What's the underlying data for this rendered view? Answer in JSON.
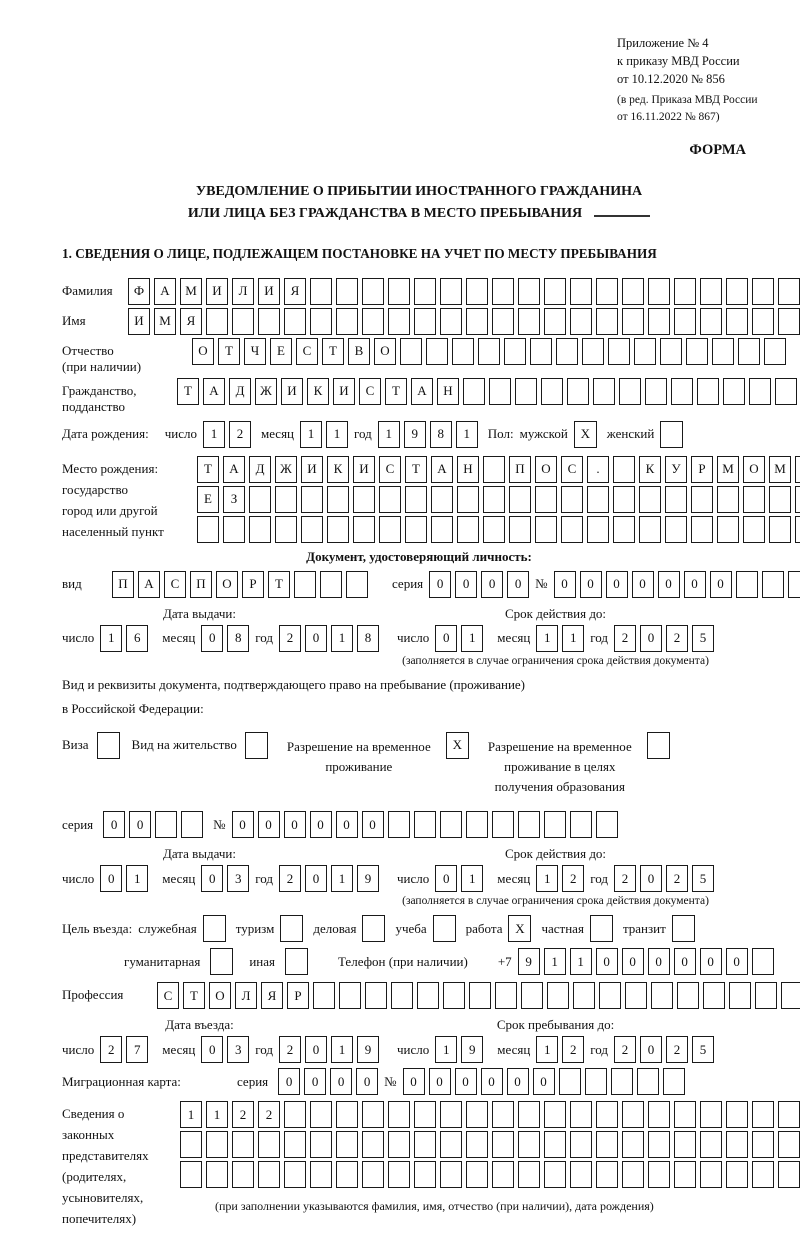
{
  "header": {
    "annex_lines": [
      "Приложение № 4",
      "к приказу МВД России",
      "от 10.12.2020 № 856"
    ],
    "edit_lines": [
      "(в ред. Приказа МВД России",
      "от 16.11.2022 № 867)"
    ],
    "form_label": "ФОРМА"
  },
  "title": {
    "line1": "УВЕДОМЛЕНИЕ О ПРИБЫТИИ ИНОСТРАННОГО ГРАЖДАНИНА",
    "line2": "ИЛИ ЛИЦА БЕЗ ГРАЖДАНСТВА В МЕСТО ПРЕБЫВАНИЯ",
    "section1": "1. СВЕДЕНИЯ О ЛИЦЕ, ПОДЛЕЖАЩЕМ ПОСТАНОВКЕ НА УЧЕТ ПО МЕСТУ ПРЕБЫВАНИЯ"
  },
  "date_labels": {
    "day": "число",
    "month": "месяц",
    "year": "год"
  },
  "fields": {
    "surname": {
      "label": "Фамилия",
      "value": "ФАМИЛИЯ"
    },
    "name": {
      "label": "Имя",
      "value": "ИМЯ"
    },
    "patronymic": {
      "label": "Отчество",
      "note": "(при наличии)",
      "value": "ОТЧЕСТВО"
    },
    "citizenship": {
      "label": "Гражданство,",
      "label2": "подданство",
      "value": "ТАДЖИКИСТАН"
    },
    "birth_date": {
      "label": "Дата рождения:",
      "day": "12",
      "month": "11",
      "year": "1981"
    },
    "sex": {
      "label": "Пол:",
      "male_label": "мужской",
      "male_checked": "X",
      "female_label": "женский",
      "female_checked": ""
    },
    "birth_place": {
      "label_lines": [
        "Место рождения:",
        "государство",
        "город или другой",
        "населенный пункт"
      ],
      "rows": [
        {
          "value": "ТАДЖИКИСТАН ПОС. КУРМОМБ"
        },
        {
          "value": "ЕЗ"
        },
        {
          "value": ""
        }
      ]
    }
  },
  "identity_doc": {
    "heading": "Документ, удостоверяющий личность:",
    "type_label": "вид",
    "type_value": "ПАСПОРТ",
    "series_label": "серия",
    "series_value": "0000",
    "number_label": "№",
    "number_value": "0000000",
    "issue": {
      "heading": "Дата выдачи:",
      "day": "16",
      "month": "08",
      "year": "2018"
    },
    "valid": {
      "heading": "Срок действия до:",
      "day": "01",
      "month": "11",
      "year": "2025"
    },
    "footnote": "(заполняется в случае ограничения срока действия документа)"
  },
  "residence_doc": {
    "intro1": "Вид и реквизиты документа, подтверждающего право на пребывание (проживание)",
    "intro2": "в Российской Федерации:",
    "options": [
      {
        "label": "Виза",
        "checked": ""
      },
      {
        "label": "Вид на жительство",
        "checked": ""
      },
      {
        "label": "Разрешение на временное проживание",
        "checked": "X"
      },
      {
        "label": "Разрешение на временное проживание в целях получения образования",
        "checked": ""
      }
    ],
    "series_label": "серия",
    "series_value": "00",
    "number_label": "№",
    "number_value": "000000",
    "issue": {
      "heading": "Дата выдачи:",
      "day": "01",
      "month": "03",
      "year": "2019"
    },
    "valid": {
      "heading": "Срок действия до:",
      "day": "01",
      "month": "12",
      "year": "2025"
    },
    "footnote": "(заполняется в случае ограничения срока действия документа)"
  },
  "visit": {
    "purpose_label": "Цель въезда:",
    "purpose_options": [
      {
        "label": "служебная",
        "checked": ""
      },
      {
        "label": "туризм",
        "checked": ""
      },
      {
        "label": "деловая",
        "checked": ""
      },
      {
        "label": "учеба",
        "checked": ""
      },
      {
        "label": "работа",
        "checked": "X"
      },
      {
        "label": "частная",
        "checked": ""
      },
      {
        "label": "транзит",
        "checked": ""
      }
    ],
    "purpose_options2": [
      {
        "label": "гуманитарная",
        "checked": ""
      },
      {
        "label": "иная",
        "checked": ""
      }
    ],
    "phone": {
      "label": "Телефон (при наличии)",
      "prefix": "+7",
      "value": "911000000"
    },
    "profession": {
      "label": "Профессия",
      "value": "СТОЛЯР"
    },
    "entry": {
      "heading": "Дата въезда:",
      "day": "27",
      "month": "03",
      "year": "2019"
    },
    "stay": {
      "heading": "Срок пребывания до:",
      "day": "19",
      "month": "12",
      "year": "2025"
    },
    "migration_card": {
      "label": "Миграционная карта:",
      "series_label": "серия",
      "series_value": "0000",
      "number_label": "№",
      "number_value": "000000"
    }
  },
  "representatives": {
    "label_lines": [
      "Сведения о",
      "законных",
      "представителях",
      "(родителях,",
      "усыновителях,",
      "попечителях)"
    ],
    "rows": [
      {
        "value": "1122"
      },
      {
        "value": ""
      },
      {
        "value": ""
      }
    ],
    "footnote": "(при заполнении указываются фамилия, имя, отчество (при наличии), дата рождения)"
  }
}
